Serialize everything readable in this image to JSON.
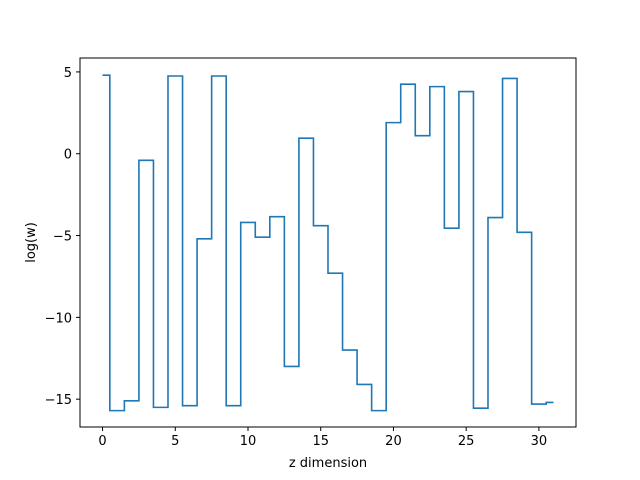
{
  "chart_data": {
    "type": "line",
    "drawstyle": "steps-mid",
    "title": "",
    "xlabel": "z dimension",
    "ylabel": "log(w)",
    "xlim": [
      -1.55,
      32.55
    ],
    "ylim": [
      -16.7,
      5.85
    ],
    "xticks": [
      0,
      5,
      10,
      15,
      20,
      25,
      30
    ],
    "xtick_labels": [
      "0",
      "5",
      "10",
      "15",
      "20",
      "25",
      "30"
    ],
    "yticks": [
      5,
      0,
      -5,
      -10,
      -15
    ],
    "ytick_labels": [
      "5",
      "0",
      "−5",
      "−10",
      "−15"
    ],
    "grid": false,
    "series_color": "#1f77b4",
    "series": [
      {
        "x": [
          0,
          1,
          2,
          3,
          4,
          5,
          6,
          7,
          8,
          9,
          10,
          11,
          12,
          13,
          14,
          15,
          16,
          17,
          18,
          19,
          20,
          21,
          22,
          23,
          24,
          25,
          26,
          27,
          28,
          29,
          30,
          31
        ],
        "values": [
          4.8,
          -15.7,
          -15.1,
          -0.4,
          -15.5,
          4.75,
          -15.4,
          -5.2,
          4.75,
          -15.4,
          -4.2,
          -5.1,
          -3.85,
          -13.0,
          0.95,
          -4.4,
          -7.3,
          -12.0,
          -14.1,
          -15.7,
          1.9,
          4.25,
          1.1,
          4.1,
          -4.55,
          3.8,
          -15.55,
          -3.9,
          4.6,
          -4.8,
          -15.3,
          -15.2
        ]
      }
    ]
  }
}
